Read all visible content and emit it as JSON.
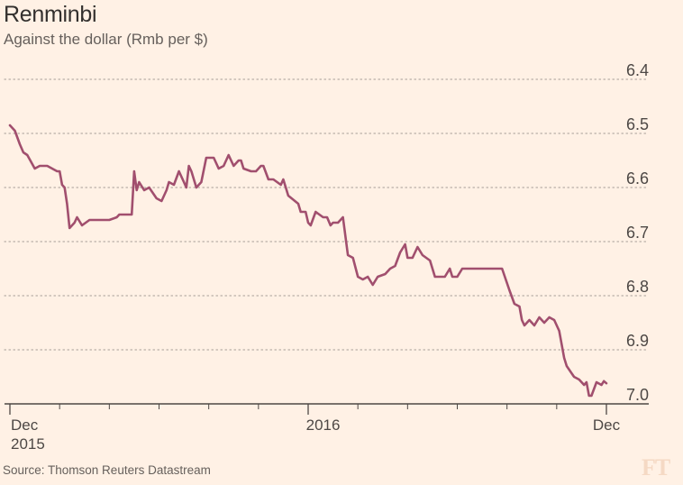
{
  "chart_data": {
    "type": "line",
    "title": "Renminbi",
    "subtitle": "Against the dollar (Rmb per $)",
    "y_axis": {
      "range": [
        6.4,
        7.0
      ],
      "inverted": true,
      "ticks": [
        6.4,
        6.5,
        6.6,
        6.7,
        6.8,
        6.9,
        7.0
      ],
      "tick_labels": [
        "6.4",
        "6.5",
        "6.6",
        "6.7",
        "6.8",
        "6.9",
        "7.0"
      ],
      "position": "right"
    },
    "x_axis": {
      "range": [
        0,
        12.0
      ],
      "major_ticks": [
        0,
        6,
        12
      ],
      "minor_ticks": [
        1,
        2,
        3,
        4,
        5,
        7,
        8,
        9,
        10,
        11
      ],
      "tick_labels": [
        {
          "pos": 0,
          "line1": "Dec",
          "line2": "2015"
        },
        {
          "pos": 6.3,
          "line1": "2016",
          "line2": ""
        },
        {
          "pos": 12.0,
          "line1": "Dec",
          "line2": ""
        }
      ]
    },
    "series": [
      {
        "name": "Renminbi per dollar",
        "color": "#a14f6e",
        "x": [
          0.0,
          0.1,
          0.2,
          0.27,
          0.35,
          0.5,
          0.6,
          0.75,
          0.85,
          0.95,
          1.0,
          1.05,
          1.1,
          1.15,
          1.2,
          1.3,
          1.35,
          1.45,
          1.6,
          1.7,
          1.85,
          2.0,
          2.15,
          2.2,
          2.3,
          2.45,
          2.5,
          2.55,
          2.6,
          2.7,
          2.8,
          2.95,
          3.05,
          3.15,
          3.2,
          3.3,
          3.4,
          3.5,
          3.55,
          3.6,
          3.65,
          3.75,
          3.85,
          3.95,
          4.1,
          4.2,
          4.3,
          4.4,
          4.5,
          4.6,
          4.65,
          4.7,
          4.85,
          4.95,
          5.05,
          5.1,
          5.2,
          5.3,
          5.45,
          5.5,
          5.6,
          5.8,
          5.85,
          5.95,
          6.0,
          6.05,
          6.15,
          6.3,
          6.38,
          6.45,
          6.5,
          6.6,
          6.7,
          6.8,
          6.9,
          7.0,
          7.1,
          7.2,
          7.3,
          7.4,
          7.55,
          7.65,
          7.75,
          7.85,
          7.95,
          8.0,
          8.1,
          8.2,
          8.3,
          8.45,
          8.55,
          8.65,
          8.75,
          8.85,
          8.9,
          9.0,
          9.1,
          9.2,
          9.3,
          9.45,
          9.6,
          9.75,
          9.9,
          10.05,
          10.15,
          10.25,
          10.3,
          10.35,
          10.45,
          10.55,
          10.65,
          10.75,
          10.85,
          10.95,
          11.05,
          11.15,
          11.2,
          11.35,
          11.45,
          11.55,
          11.6,
          11.65,
          11.7,
          11.8,
          11.9,
          11.95,
          12.0
        ],
        "values": [
          6.485,
          6.495,
          6.52,
          6.535,
          6.54,
          6.565,
          6.56,
          6.56,
          6.565,
          6.57,
          6.57,
          6.595,
          6.6,
          6.63,
          6.675,
          6.665,
          6.655,
          6.67,
          6.66,
          6.66,
          6.66,
          6.66,
          6.655,
          6.65,
          6.65,
          6.65,
          6.57,
          6.605,
          6.59,
          6.605,
          6.6,
          6.62,
          6.625,
          6.605,
          6.59,
          6.595,
          6.57,
          6.59,
          6.6,
          6.56,
          6.57,
          6.6,
          6.59,
          6.545,
          6.545,
          6.565,
          6.56,
          6.54,
          6.56,
          6.55,
          6.55,
          6.565,
          6.57,
          6.57,
          6.56,
          6.56,
          6.585,
          6.585,
          6.595,
          6.585,
          6.615,
          6.63,
          6.645,
          6.645,
          6.665,
          6.67,
          6.645,
          6.655,
          6.655,
          6.67,
          6.665,
          6.665,
          6.655,
          6.725,
          6.73,
          6.765,
          6.77,
          6.765,
          6.78,
          6.765,
          6.76,
          6.75,
          6.745,
          6.72,
          6.705,
          6.73,
          6.73,
          6.71,
          6.725,
          6.735,
          6.765,
          6.765,
          6.765,
          6.75,
          6.765,
          6.765,
          6.75,
          6.75,
          6.75,
          6.75,
          6.75,
          6.75,
          6.75,
          6.79,
          6.815,
          6.82,
          6.845,
          6.855,
          6.845,
          6.855,
          6.84,
          6.85,
          6.84,
          6.845,
          6.865,
          6.915,
          6.93,
          6.95,
          6.955,
          6.965,
          6.96,
          6.985,
          6.985,
          6.96,
          6.965,
          6.958,
          6.962
        ]
      }
    ]
  },
  "source": "Source: Thomson Reuters Datastream",
  "watermark": "FT"
}
